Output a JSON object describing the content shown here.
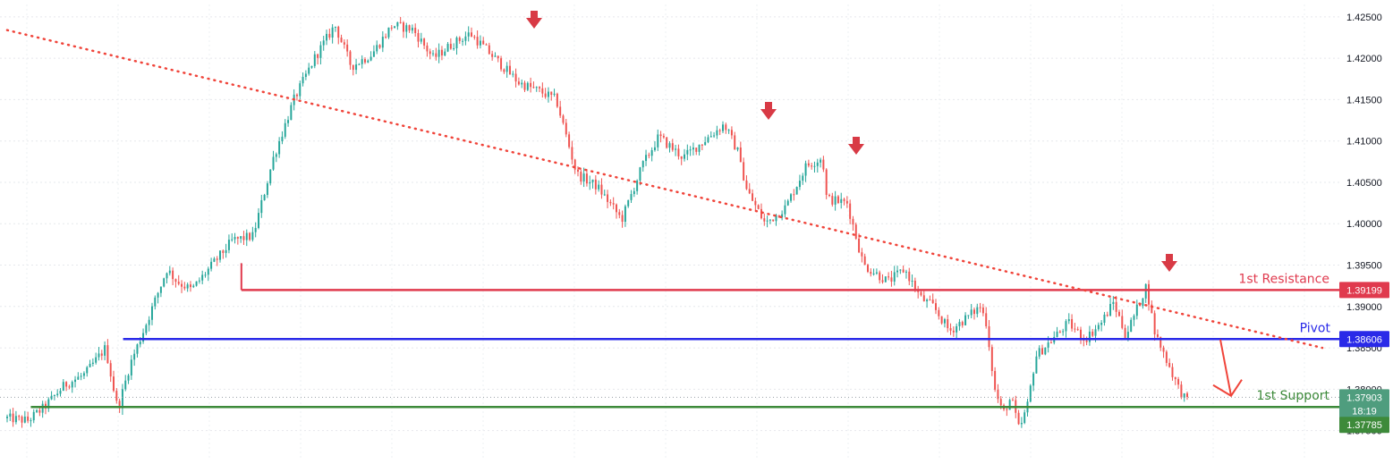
{
  "chart_data": {
    "type": "candlestick",
    "ylim": [
      1.3715,
      1.4265
    ],
    "y_ticks": [
      "1.42500",
      "1.42000",
      "1.41500",
      "1.41000",
      "1.40500",
      "1.40000",
      "1.39500",
      "1.39000",
      "1.38500",
      "1.38000",
      "1.37500"
    ],
    "grid": true,
    "price_close": 1.37903,
    "countdown": "18:19",
    "levels": [
      {
        "key": "resistance",
        "name": "1st Resistance",
        "value": 1.39199,
        "tag": "1.39199",
        "color": "#e03a4e"
      },
      {
        "key": "pivot",
        "name": "Pivot",
        "value": 1.38606,
        "tag": "1.38606",
        "color": "#2a2ae8"
      },
      {
        "key": "support",
        "name": "1st Support",
        "value": 1.37785,
        "tag": "1.37785",
        "color": "#3d8a3a"
      }
    ],
    "close_tag": {
      "value": "1.37903",
      "color": "#4f9d7e"
    },
    "colors": {
      "up": "#26a69a",
      "down": "#ef5350",
      "trendline": "#f0443a",
      "marker": "#d83a45",
      "arrow": "#f0443a"
    },
    "trendline": [
      [
        0,
        1.4234
      ],
      [
        205,
        1.4125
      ],
      [
        246,
        1.4075
      ],
      [
        381,
        1.3935
      ],
      [
        400,
        1.385
      ]
    ],
    "resistance_markers": [
      84,
      189,
      227,
      369
    ],
    "projection_arrow": "down",
    "candles_count": 400,
    "anchor_path": [
      [
        0,
        1.3765
      ],
      [
        10,
        1.3762
      ],
      [
        18,
        1.3778
      ],
      [
        28,
        1.3805
      ],
      [
        38,
        1.3818
      ],
      [
        48,
        1.385
      ],
      [
        52,
        1.38
      ],
      [
        54,
        1.3775
      ],
      [
        60,
        1.383
      ],
      [
        68,
        1.388
      ],
      [
        78,
        1.3945
      ],
      [
        83,
        1.393
      ],
      [
        90,
        1.392
      ],
      [
        100,
        1.395
      ],
      [
        110,
        1.398
      ],
      [
        120,
        1.3985
      ],
      [
        130,
        1.408
      ],
      [
        140,
        1.415
      ],
      [
        150,
        1.42
      ],
      [
        160,
        1.424
      ],
      [
        168,
        1.419
      ],
      [
        178,
        1.4205
      ],
      [
        188,
        1.424
      ],
      [
        198,
        1.4235
      ],
      [
        208,
        1.42
      ],
      [
        216,
        1.4215
      ],
      [
        226,
        1.423
      ],
      [
        238,
        1.42
      ],
      [
        250,
        1.417
      ],
      [
        260,
        1.416
      ],
      [
        268,
        1.415
      ],
      [
        278,
        1.406
      ],
      [
        288,
        1.4045
      ],
      [
        300,
        1.4005
      ],
      [
        310,
        1.407
      ],
      [
        318,
        1.4105
      ],
      [
        330,
        1.408
      ],
      [
        340,
        1.41
      ],
      [
        350,
        1.412
      ],
      [
        358,
        1.408
      ],
      [
        360,
        1.4045
      ],
      [
        370,
        1.4
      ],
      [
        380,
        1.402
      ],
      [
        390,
        1.407
      ],
      [
        398,
        1.408
      ],
      [
        400,
        1.403
      ],
      [
        410,
        1.4025
      ],
      [
        418,
        1.395
      ],
      [
        430,
        1.393
      ],
      [
        438,
        1.3945
      ],
      [
        446,
        1.391
      ],
      [
        452,
        1.39
      ],
      [
        460,
        1.387
      ],
      [
        470,
        1.389
      ],
      [
        475,
        1.39
      ],
      [
        478,
        1.388
      ],
      [
        482,
        1.38
      ],
      [
        486,
        1.377
      ],
      [
        490,
        1.379
      ],
      [
        494,
        1.375
      ],
      [
        498,
        1.378
      ],
      [
        502,
        1.384
      ],
      [
        510,
        1.386
      ],
      [
        518,
        1.388
      ],
      [
        526,
        1.386
      ],
      [
        534,
        1.388
      ],
      [
        540,
        1.3905
      ],
      [
        546,
        1.3865
      ],
      [
        552,
        1.39
      ],
      [
        556,
        1.3925
      ],
      [
        560,
        1.387
      ],
      [
        566,
        1.3835
      ],
      [
        572,
        1.38
      ],
      [
        576,
        1.3785
      ]
    ]
  }
}
